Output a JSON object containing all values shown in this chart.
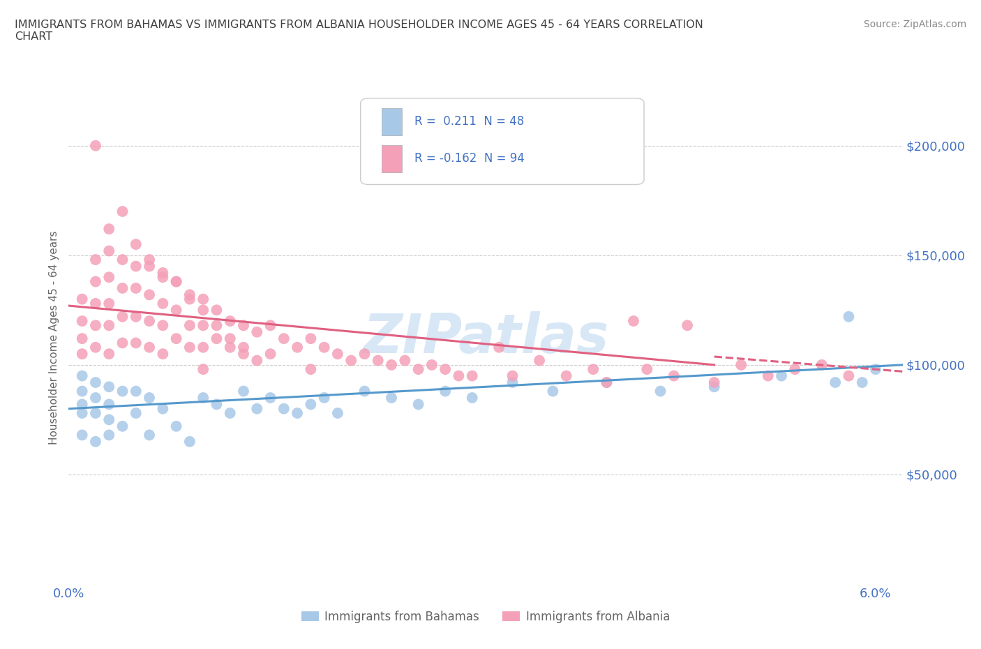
{
  "title": "IMMIGRANTS FROM BAHAMAS VS IMMIGRANTS FROM ALBANIA HOUSEHOLDER INCOME AGES 45 - 64 YEARS CORRELATION\nCHART",
  "source_text": "Source: ZipAtlas.com",
  "ylabel": "Householder Income Ages 45 - 64 years",
  "xlim": [
    0.0,
    0.062
  ],
  "ylim": [
    0,
    225000
  ],
  "xticks": [
    0.0,
    0.01,
    0.02,
    0.03,
    0.04,
    0.05,
    0.06
  ],
  "ytick_positions": [
    50000,
    100000,
    150000,
    200000
  ],
  "ytick_labels": [
    "$50,000",
    "$100,000",
    "$150,000",
    "$200,000"
  ],
  "color_bahamas": "#a8c8e8",
  "color_albania": "#f4a0b8",
  "line_color_bahamas": "#5599cc",
  "line_color_albania": "#e06080",
  "R_bahamas": 0.211,
  "N_bahamas": 48,
  "R_albania": -0.162,
  "N_albania": 94,
  "legend_bahamas": "Immigrants from Bahamas",
  "legend_albania": "Immigrants from Albania",
  "watermark": "ZIPatlas",
  "background_color": "#ffffff",
  "grid_color": "#cccccc",
  "title_color": "#404040",
  "axis_color": "#4472c4",
  "bahamas_x": [
    0.001,
    0.001,
    0.001,
    0.001,
    0.001,
    0.002,
    0.002,
    0.002,
    0.002,
    0.003,
    0.003,
    0.003,
    0.003,
    0.004,
    0.004,
    0.005,
    0.005,
    0.006,
    0.006,
    0.007,
    0.008,
    0.009,
    0.01,
    0.011,
    0.012,
    0.013,
    0.014,
    0.015,
    0.016,
    0.017,
    0.018,
    0.019,
    0.02,
    0.022,
    0.024,
    0.026,
    0.028,
    0.03,
    0.033,
    0.036,
    0.04,
    0.044,
    0.048,
    0.053,
    0.057,
    0.058,
    0.059,
    0.06
  ],
  "bahamas_y": [
    95000,
    88000,
    82000,
    78000,
    68000,
    92000,
    85000,
    78000,
    65000,
    90000,
    82000,
    75000,
    68000,
    88000,
    72000,
    88000,
    78000,
    85000,
    68000,
    80000,
    72000,
    65000,
    85000,
    82000,
    78000,
    88000,
    80000,
    85000,
    80000,
    78000,
    82000,
    85000,
    78000,
    88000,
    85000,
    82000,
    88000,
    85000,
    92000,
    88000,
    92000,
    88000,
    90000,
    95000,
    92000,
    122000,
    92000,
    98000
  ],
  "albania_x": [
    0.001,
    0.001,
    0.001,
    0.001,
    0.002,
    0.002,
    0.002,
    0.002,
    0.002,
    0.003,
    0.003,
    0.003,
    0.003,
    0.003,
    0.004,
    0.004,
    0.004,
    0.004,
    0.005,
    0.005,
    0.005,
    0.005,
    0.006,
    0.006,
    0.006,
    0.006,
    0.007,
    0.007,
    0.007,
    0.007,
    0.008,
    0.008,
    0.008,
    0.009,
    0.009,
    0.009,
    0.01,
    0.01,
    0.01,
    0.01,
    0.011,
    0.011,
    0.012,
    0.012,
    0.013,
    0.013,
    0.014,
    0.014,
    0.015,
    0.015,
    0.016,
    0.017,
    0.018,
    0.018,
    0.019,
    0.02,
    0.021,
    0.022,
    0.023,
    0.024,
    0.025,
    0.026,
    0.027,
    0.028,
    0.029,
    0.03,
    0.032,
    0.033,
    0.035,
    0.037,
    0.039,
    0.04,
    0.042,
    0.043,
    0.045,
    0.046,
    0.048,
    0.05,
    0.052,
    0.054,
    0.056,
    0.058,
    0.003,
    0.004,
    0.005,
    0.006,
    0.007,
    0.008,
    0.009,
    0.01,
    0.011,
    0.012,
    0.013,
    0.002
  ],
  "albania_y": [
    130000,
    120000,
    112000,
    105000,
    148000,
    138000,
    128000,
    118000,
    108000,
    152000,
    140000,
    128000,
    118000,
    105000,
    148000,
    135000,
    122000,
    110000,
    145000,
    135000,
    122000,
    110000,
    145000,
    132000,
    120000,
    108000,
    140000,
    128000,
    118000,
    105000,
    138000,
    125000,
    112000,
    132000,
    118000,
    108000,
    130000,
    118000,
    108000,
    98000,
    125000,
    112000,
    120000,
    108000,
    118000,
    105000,
    115000,
    102000,
    118000,
    105000,
    112000,
    108000,
    112000,
    98000,
    108000,
    105000,
    102000,
    105000,
    102000,
    100000,
    102000,
    98000,
    100000,
    98000,
    95000,
    95000,
    108000,
    95000,
    102000,
    95000,
    98000,
    92000,
    120000,
    98000,
    95000,
    118000,
    92000,
    100000,
    95000,
    98000,
    100000,
    95000,
    162000,
    170000,
    155000,
    148000,
    142000,
    138000,
    130000,
    125000,
    118000,
    112000,
    108000,
    200000
  ]
}
